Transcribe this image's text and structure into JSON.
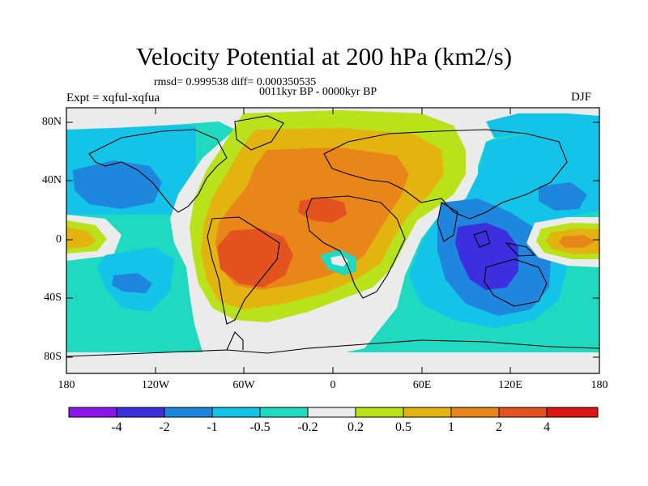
{
  "header": {
    "title": "Velocity Potential at 200 hPa (km2/s)",
    "stats": "rmsd= 0.999538 diff= 0.000350535",
    "experiment": "Expt = xqful-xqfua",
    "period": "0011kyr BP - 0000kyr BP",
    "season": "DJF"
  },
  "map": {
    "lat_labels": [
      "80N",
      "40N",
      "0",
      "40S",
      "80S"
    ],
    "lon_labels": [
      "180",
      "120W",
      "60W",
      "0",
      "60E",
      "120E",
      "180"
    ]
  },
  "colorbar": {
    "labels": [
      "-4",
      "-2",
      "-1",
      "-0.5",
      "-0.2",
      "0.2",
      "0.5",
      "1",
      "2",
      "4"
    ],
    "colors": [
      "#8a17e8",
      "#3b2fe0",
      "#1f86dd",
      "#13c3e8",
      "#1fd9c0",
      "#ebebeb",
      "#b9e21a",
      "#e3b40f",
      "#e9861a",
      "#e4521f",
      "#dd1614"
    ]
  },
  "palette": {
    "neutral": "#ebebeb",
    "pos1": "#b9e21a",
    "pos2": "#e3b40f",
    "pos3": "#e9861a",
    "pos4": "#e4521f",
    "neg1": "#1fd9c0",
    "neg2": "#13c3e8",
    "neg3": "#1f86dd",
    "neg4": "#3b2fe0"
  }
}
